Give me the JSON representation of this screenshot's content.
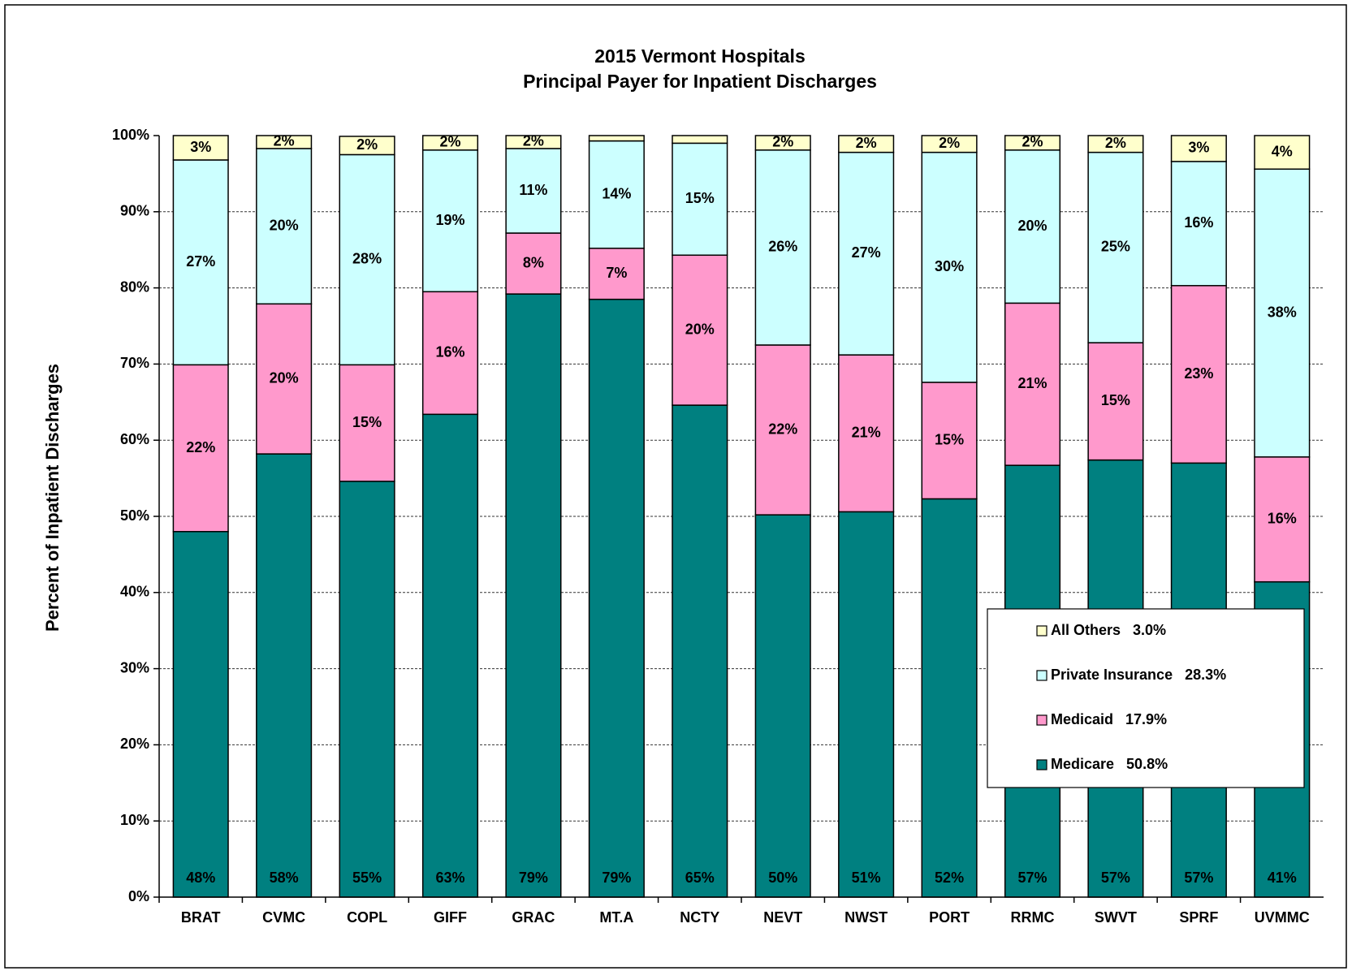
{
  "chart_data": {
    "type": "stacked_bar",
    "title": "2015 Vermont Hospitals",
    "subtitle": "Principal Payer for Inpatient Discharges",
    "y_label": "Percent of Inpatient Discharges",
    "categories": [
      "BRAT",
      "CVMC",
      "COPL",
      "GIFF",
      "GRAC",
      "MT.A",
      "NCTY",
      "NEVT",
      "NWST",
      "PORT",
      "RRMC",
      "SWVT",
      "SPRF",
      "UVMMC"
    ],
    "series": [
      {
        "name": "Medicare   50.8%",
        "color": "#008080",
        "values": [
          48.0,
          58.2,
          54.6,
          63.4,
          79.2,
          78.5,
          64.6,
          50.2,
          50.6,
          52.3,
          56.7,
          57.4,
          57.0,
          41.4
        ],
        "value_labels": [
          "48%",
          "58%",
          "55%",
          "63%",
          "79%",
          "79%",
          "65%",
          "50%",
          "51%",
          "52%",
          "57%",
          "57%",
          "57%",
          "41%"
        ]
      },
      {
        "name": "Medicaid   17.9%",
        "color": "#ff99cc",
        "values": [
          21.9,
          19.7,
          15.3,
          16.1,
          8.0,
          6.7,
          19.7,
          22.3,
          20.6,
          15.3,
          21.3,
          15.4,
          23.3,
          16.4
        ],
        "value_labels": [
          "22%",
          "20%",
          "15%",
          "16%",
          "8%",
          "7%",
          "20%",
          "22%",
          "21%",
          "15%",
          "21%",
          "15%",
          "23%",
          "16%"
        ]
      },
      {
        "name": "Private Insurance   28.3%",
        "color": "#ccffff",
        "values": [
          26.9,
          20.4,
          27.6,
          18.6,
          11.1,
          14.1,
          14.7,
          25.6,
          26.6,
          30.2,
          20.1,
          25.0,
          16.3,
          37.8
        ],
        "value_labels": [
          "27%",
          "20%",
          "28%",
          "19%",
          "11%",
          "14%",
          "15%",
          "26%",
          "27%",
          "30%",
          "20%",
          "25%",
          "16%",
          "38%"
        ]
      },
      {
        "name": "All Others   3.0%",
        "color": "#ffffcc",
        "values": [
          3.2,
          1.7,
          2.4,
          1.9,
          1.7,
          0.7,
          1.0,
          1.9,
          2.2,
          2.2,
          1.9,
          2.2,
          3.4,
          4.4
        ],
        "value_labels": [
          "3%",
          "2%",
          "2%",
          "2%",
          "2%",
          null,
          null,
          "2%",
          "2%",
          "2%",
          "2%",
          "2%",
          "3%",
          "4%"
        ]
      }
    ],
    "ylim": [
      0,
      100
    ],
    "yticks": [
      {
        "value": 0,
        "label": "0%"
      },
      {
        "value": 10,
        "label": "10%"
      },
      {
        "value": 20,
        "label": "20%"
      },
      {
        "value": 30,
        "label": "30%"
      },
      {
        "value": 40,
        "label": "40%"
      },
      {
        "value": 50,
        "label": "50%"
      },
      {
        "value": 60,
        "label": "60%"
      },
      {
        "value": 70,
        "label": "70%"
      },
      {
        "value": 80,
        "label": "80%"
      },
      {
        "value": 90,
        "label": "90%"
      },
      {
        "value": 100,
        "label": "100%"
      }
    ],
    "grid": true,
    "legend": "lower right"
  }
}
